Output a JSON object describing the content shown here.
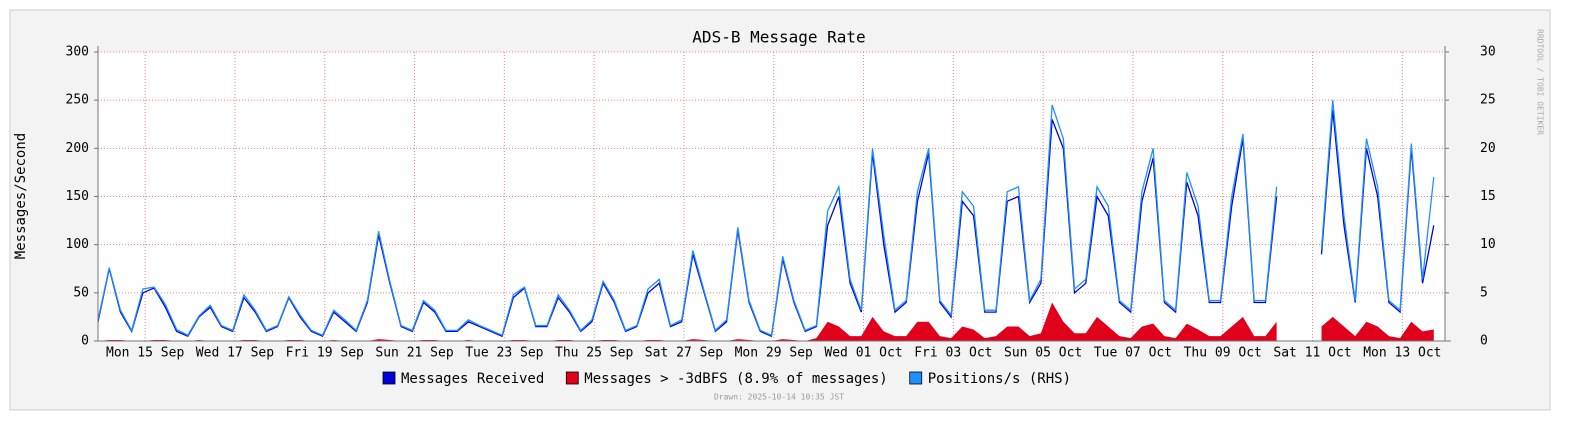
{
  "chart_data": {
    "type": "line",
    "title": "ADS-B Message Rate",
    "y_label": "Messages/Second",
    "side_label": "RRDTOOL / TOBI OETIKER",
    "footer": "Drawn: 2025-10-14 10:35 JST",
    "xlim": [
      0,
      120
    ],
    "xticks": [
      {
        "value": 4.2,
        "label": "Mon 15 Sep"
      },
      {
        "value": 12.2,
        "label": "Wed 17 Sep"
      },
      {
        "value": 20.2,
        "label": "Fri 19 Sep"
      },
      {
        "value": 28.2,
        "label": "Sun 21 Sep"
      },
      {
        "value": 36.2,
        "label": "Tue 23 Sep"
      },
      {
        "value": 44.2,
        "label": "Thu 25 Sep"
      },
      {
        "value": 52.2,
        "label": "Sat 27 Sep"
      },
      {
        "value": 60.2,
        "label": "Mon 29 Sep"
      },
      {
        "value": 68.2,
        "label": "Wed 01 Oct"
      },
      {
        "value": 76.2,
        "label": "Fri 03 Oct"
      },
      {
        "value": 84.2,
        "label": "Sun 05 Oct"
      },
      {
        "value": 92.2,
        "label": "Tue 07 Oct"
      },
      {
        "value": 100.2,
        "label": "Thu 09 Oct"
      },
      {
        "value": 108.2,
        "label": "Sat 11 Oct"
      },
      {
        "value": 116.2,
        "label": "Mon 13 Oct"
      }
    ],
    "ylim": [
      0,
      300
    ],
    "yticks": [
      0,
      50,
      100,
      150,
      200,
      250,
      300
    ],
    "y2lim": [
      0,
      30
    ],
    "y2ticks": [
      0,
      5,
      10,
      15,
      20,
      25,
      30
    ],
    "grid": true,
    "series": [
      {
        "name": "Messages > -3dBFS (8.9% of messages)",
        "color": "#e0001b",
        "style": "area",
        "values": [
          0,
          1,
          1,
          0,
          0,
          1,
          1,
          0,
          0,
          1,
          0,
          0,
          0,
          1,
          1,
          0,
          0,
          1,
          1,
          0,
          0,
          1,
          0,
          0,
          0,
          2,
          1,
          0,
          0,
          1,
          1,
          0,
          0,
          1,
          0,
          0,
          0,
          1,
          1,
          0,
          0,
          1,
          1,
          0,
          0,
          1,
          1,
          0,
          0,
          1,
          1,
          0,
          0,
          2,
          1,
          0,
          0,
          2,
          1,
          0,
          0,
          2,
          1,
          0,
          3,
          20,
          15,
          5,
          5,
          25,
          10,
          5,
          5,
          20,
          20,
          5,
          3,
          15,
          12,
          3,
          5,
          15,
          15,
          5,
          8,
          40,
          20,
          8,
          8,
          25,
          15,
          5,
          3,
          15,
          18,
          5,
          3,
          18,
          12,
          5,
          5,
          15,
          25,
          5,
          5,
          20,
          null,
          null,
          null,
          15,
          25,
          15,
          5,
          20,
          15,
          5,
          3,
          20,
          10,
          12
        ]
      },
      {
        "name": "Messages Received",
        "color": "#0000dd",
        "style": "line",
        "values": [
          20,
          75,
          30,
          10,
          50,
          55,
          35,
          10,
          5,
          25,
          35,
          15,
          10,
          45,
          30,
          10,
          15,
          45,
          25,
          10,
          5,
          30,
          20,
          10,
          40,
          110,
          60,
          15,
          10,
          40,
          30,
          10,
          10,
          20,
          15,
          10,
          5,
          45,
          55,
          15,
          15,
          45,
          30,
          10,
          20,
          60,
          40,
          10,
          15,
          50,
          60,
          15,
          20,
          90,
          50,
          10,
          20,
          115,
          40,
          10,
          5,
          85,
          40,
          10,
          15,
          120,
          150,
          60,
          30,
          195,
          100,
          30,
          40,
          145,
          195,
          40,
          25,
          145,
          130,
          30,
          30,
          145,
          150,
          40,
          60,
          230,
          200,
          50,
          60,
          150,
          130,
          40,
          30,
          145,
          190,
          40,
          30,
          165,
          130,
          40,
          40,
          140,
          210,
          40,
          40,
          150,
          null,
          null,
          null,
          90,
          240,
          120,
          40,
          200,
          150,
          40,
          30,
          200,
          60,
          120
        ]
      },
      {
        "name": "Positions/s (RHS)",
        "color": "#1e90ff",
        "style": "line",
        "axis": "y2",
        "values": [
          2.2,
          7.6,
          3.2,
          1.1,
          5.4,
          5.6,
          3.8,
          1.2,
          0.6,
          2.6,
          3.7,
          1.6,
          1.1,
          4.8,
          3.2,
          1.1,
          1.6,
          4.6,
          2.7,
          1.1,
          0.6,
          3.2,
          2.2,
          1.1,
          4.2,
          11.4,
          6.2,
          1.6,
          1.1,
          4.2,
          3.2,
          1.1,
          1.1,
          2.2,
          1.6,
          1.1,
          0.6,
          4.8,
          5.6,
          1.6,
          1.6,
          4.8,
          3.2,
          1.1,
          2.2,
          6.2,
          4.2,
          1.1,
          1.6,
          5.4,
          6.4,
          1.6,
          2.2,
          9.4,
          5.2,
          1.1,
          2.2,
          11.8,
          4.2,
          1.1,
          0.6,
          8.8,
          4.2,
          1.1,
          1.6,
          13.5,
          16,
          6.4,
          3.2,
          20,
          11,
          3.2,
          4.2,
          15.5,
          20,
          4.2,
          2.7,
          15.5,
          14,
          3.2,
          3.2,
          15.5,
          16,
          4.2,
          6.4,
          24.5,
          21,
          5.4,
          6.4,
          16,
          14,
          4.2,
          3.2,
          15.5,
          20,
          4.2,
          3.2,
          17.5,
          14,
          4.2,
          4.2,
          15,
          21.5,
          4.2,
          4.2,
          16,
          null,
          null,
          null,
          9.6,
          25,
          13,
          4.2,
          21,
          16,
          4.2,
          3.2,
          20.5,
          6.4,
          17
        ]
      }
    ]
  }
}
